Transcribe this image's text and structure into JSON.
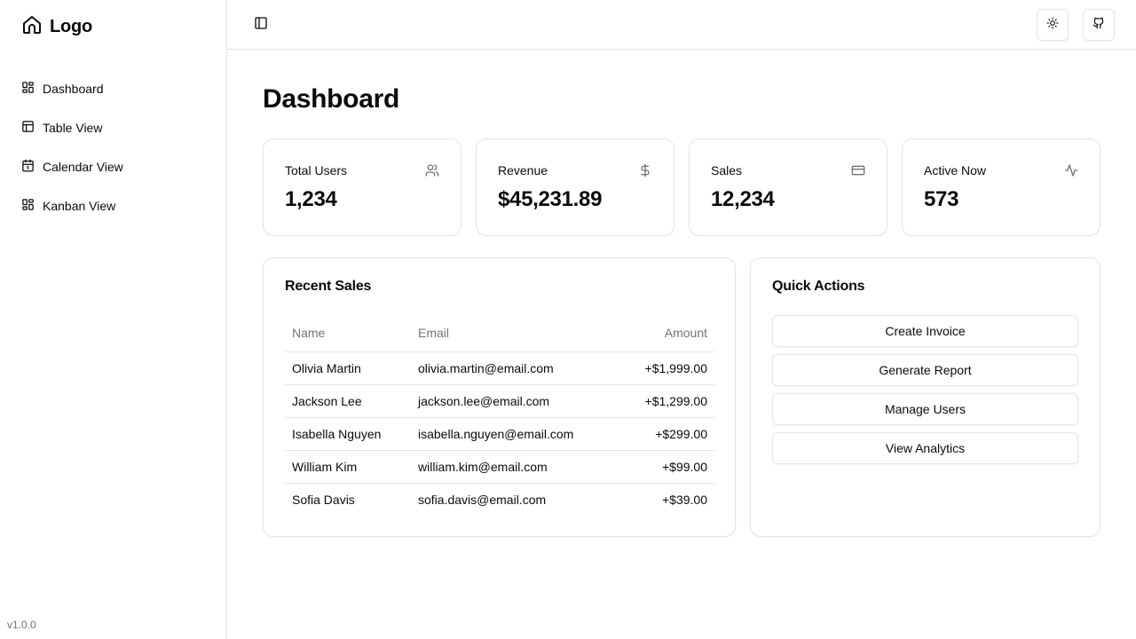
{
  "app": {
    "logo_text": "Logo",
    "version": "v1.0.0"
  },
  "sidebar": {
    "items": [
      {
        "label": "Dashboard",
        "icon": "layout-dashboard-icon"
      },
      {
        "label": "Table View",
        "icon": "table-icon"
      },
      {
        "label": "Calendar View",
        "icon": "calendar-icon"
      },
      {
        "label": "Kanban View",
        "icon": "kanban-icon"
      }
    ]
  },
  "topbar": {
    "toggle_icon": "panel-left-icon",
    "theme_icon": "sun-icon",
    "github_icon": "github-icon"
  },
  "main": {
    "title": "Dashboard",
    "stats": [
      {
        "label": "Total Users",
        "value": "1,234",
        "icon": "users-icon"
      },
      {
        "label": "Revenue",
        "value": "$45,231.89",
        "icon": "dollar-sign-icon"
      },
      {
        "label": "Sales",
        "value": "12,234",
        "icon": "credit-card-icon"
      },
      {
        "label": "Active Now",
        "value": "573",
        "icon": "activity-icon"
      }
    ],
    "recent_sales": {
      "title": "Recent Sales",
      "columns": [
        "Name",
        "Email",
        "Amount"
      ],
      "rows": [
        {
          "name": "Olivia Martin",
          "email": "olivia.martin@email.com",
          "amount": "+$1,999.00"
        },
        {
          "name": "Jackson Lee",
          "email": "jackson.lee@email.com",
          "amount": "+$1,299.00"
        },
        {
          "name": "Isabella Nguyen",
          "email": "isabella.nguyen@email.com",
          "amount": "+$299.00"
        },
        {
          "name": "William Kim",
          "email": "william.kim@email.com",
          "amount": "+$99.00"
        },
        {
          "name": "Sofia Davis",
          "email": "sofia.davis@email.com",
          "amount": "+$39.00"
        }
      ]
    },
    "quick_actions": {
      "title": "Quick Actions",
      "buttons": [
        "Create Invoice",
        "Generate Report",
        "Manage Users",
        "View Analytics"
      ]
    }
  },
  "colors": {
    "border": "#e5e5e5",
    "text": "#0a0a0a",
    "muted": "#737373"
  }
}
